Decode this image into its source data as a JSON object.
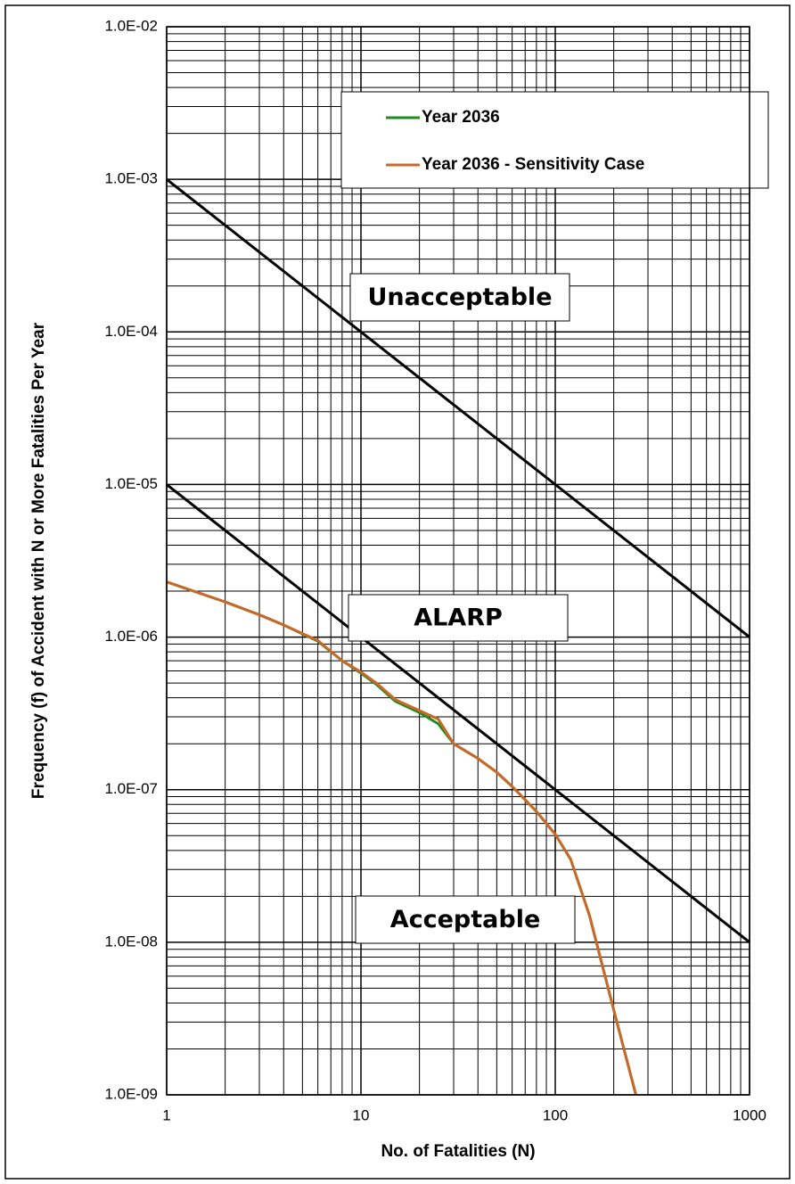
{
  "chart_data": {
    "type": "line",
    "x_label": "No. of Fatalities (N)",
    "y_label": "Frequency (f) of Accident with N or More Fatalities Per Year",
    "log_x": true,
    "log_y": true,
    "grid": true,
    "xlim": [
      1,
      1000
    ],
    "ylim": [
      1e-09,
      0.01
    ],
    "xticks": [
      1,
      10,
      100,
      1000
    ],
    "yticks": [
      {
        "value": 1e-09,
        "label": "1.0E-09"
      },
      {
        "value": 1e-08,
        "label": "1.0E-08"
      },
      {
        "value": 1e-07,
        "label": "1.0E-07"
      },
      {
        "value": 1e-06,
        "label": "1.0E-06"
      },
      {
        "value": 1e-05,
        "label": "1.0E-05"
      },
      {
        "value": 0.0001,
        "label": "1.0E-04"
      },
      {
        "value": 0.001,
        "label": "1.0E-03"
      },
      {
        "value": 0.01,
        "label": "1.0E-02"
      }
    ],
    "criteria_lines": [
      {
        "color": "#000000",
        "x": [
          1,
          1000
        ],
        "values": [
          0.001,
          1e-06
        ]
      },
      {
        "color": "#000000",
        "x": [
          1,
          1000
        ],
        "values": [
          1e-05,
          1e-08
        ]
      }
    ],
    "annotations": [
      "Unacceptable",
      "ALARP",
      "Acceptable"
    ],
    "series": [
      {
        "name": "Year 2036",
        "color": "#1e8c1e",
        "x": [
          1,
          2,
          3,
          4,
          6,
          8,
          10,
          12,
          15,
          20,
          25,
          30,
          40,
          50,
          60,
          80,
          100,
          120,
          150,
          200,
          260
        ],
        "values": [
          2.3e-06,
          1.7e-06,
          1.4e-06,
          1.2e-06,
          9.4e-07,
          7e-07,
          5.8e-07,
          4.9e-07,
          3.8e-07,
          3.2e-07,
          2.7e-07,
          2e-07,
          1.6e-07,
          1.3e-07,
          1.05e-07,
          7.2e-08,
          5.1e-08,
          3.5e-08,
          1.5e-08,
          3.6e-09,
          1e-09
        ]
      },
      {
        "name": "Year 2036 - Sensitivity Case",
        "color": "#c8692a",
        "x": [
          1,
          2,
          3,
          4,
          6,
          8,
          10,
          12,
          15,
          20,
          25,
          30,
          40,
          50,
          60,
          80,
          100,
          120,
          150,
          200,
          260
        ],
        "values": [
          2.3e-06,
          1.7e-06,
          1.4e-06,
          1.2e-06,
          9.5e-07,
          7e-07,
          5.9e-07,
          5e-07,
          3.9e-07,
          3.3e-07,
          2.9e-07,
          2e-07,
          1.6e-07,
          1.3e-07,
          1.05e-07,
          7.2e-08,
          5.1e-08,
          3.5e-08,
          1.5e-08,
          3.6e-09,
          1e-09
        ]
      }
    ]
  }
}
